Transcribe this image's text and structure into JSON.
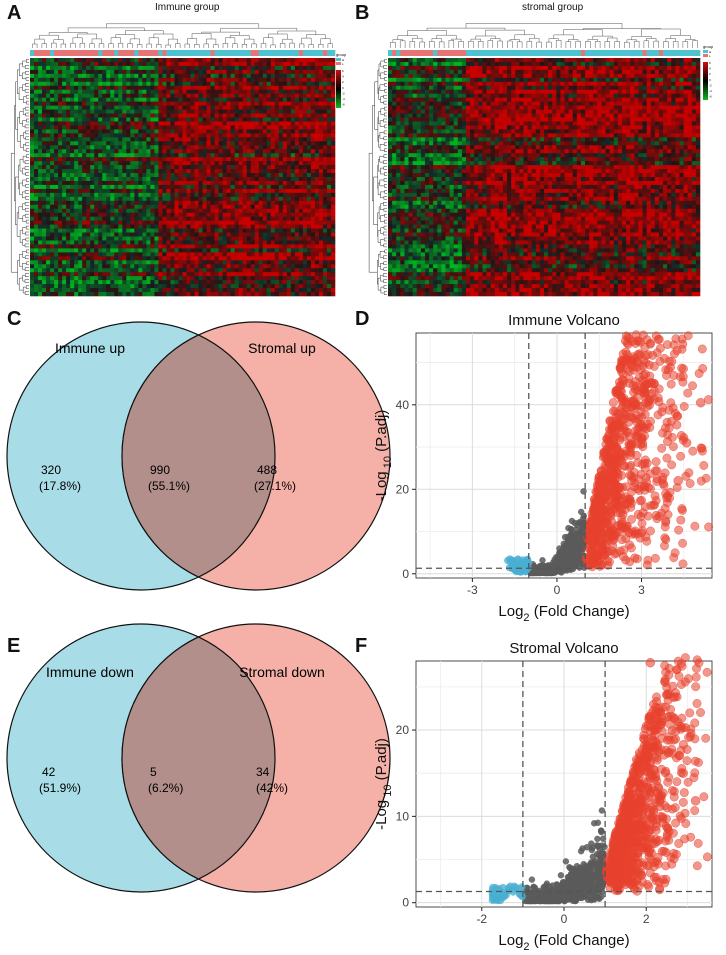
{
  "panels": {
    "a": {
      "letter": "A",
      "title": "Immune group",
      "legend_title": "group",
      "legend_groups": [
        "H",
        "L"
      ],
      "legend_ticks": [
        "6",
        "4",
        "2",
        "0",
        "-2",
        "-4",
        "-6"
      ]
    },
    "b": {
      "letter": "B",
      "title": "stromal group",
      "legend_title": "group",
      "legend_groups": [
        "H",
        "L"
      ],
      "legend_ticks": [
        "6",
        "4",
        "2",
        "0",
        "-2",
        "-4",
        "-6"
      ]
    },
    "c": {
      "letter": "C",
      "left_label": "Immune up",
      "right_label": "Stromal up",
      "left_count": "320",
      "left_pct": "(17.8%)",
      "mid_count": "990",
      "mid_pct": "(55.1%)",
      "right_count": "488",
      "right_pct": "(27.1%)"
    },
    "d": {
      "letter": "D"
    },
    "e": {
      "letter": "E",
      "left_label": "Immune down",
      "right_label": "Stromal down",
      "left_count": "42",
      "left_pct": "(51.9%)",
      "mid_count": "5",
      "mid_pct": "(6.2%)",
      "right_count": "34",
      "right_pct": "(42%)"
    },
    "f": {
      "letter": "F"
    }
  },
  "colors": {
    "venn_left": "#a8dde7",
    "venn_right": "#f5b1a8",
    "venn_overlap": "#b38f8c",
    "heat_group_h": "#e77474",
    "heat_group_l": "#4dc3d1",
    "volcano_up": "#e8412e",
    "volcano_down": "#4aafd2",
    "volcano_ns": "#5a5a5a"
  },
  "chart_data": [
    {
      "id": "immune_volcano",
      "type": "scatter",
      "title": "Immune Volcano",
      "xlabel_base": "Log",
      "xlabel_sub": "2",
      "xlabel_rest": " (Fold Change)",
      "ylabel_base": "-Log",
      "ylabel_sub": "10",
      "ylabel_rest": " (P.adj)",
      "xlim": [
        -5,
        5.5
      ],
      "ylim": [
        -1,
        57
      ],
      "x_ticks": [
        -3,
        0,
        3
      ],
      "y_ticks": [
        0,
        20,
        40
      ],
      "fc_cutoff": 1,
      "p_cutoff": 1.3,
      "outlier_points": [
        {
          "x": 5.1,
          "y": 40.5
        },
        {
          "x": 4.6,
          "y": 31
        },
        {
          "x": 4.3,
          "y": 22
        },
        {
          "x": 3.9,
          "y": 18
        }
      ],
      "seed": 7
    },
    {
      "id": "stromal_volcano",
      "type": "scatter",
      "title": "Stromal Volcano",
      "xlabel_base": "Log",
      "xlabel_sub": "2",
      "xlabel_rest": " (Fold Change)",
      "ylabel_base": "-Log",
      "ylabel_sub": "10",
      "ylabel_rest": " (P.adj)",
      "xlim": [
        -3.6,
        3.6
      ],
      "ylim": [
        -0.5,
        28
      ],
      "x_ticks": [
        -2,
        0,
        2
      ],
      "y_ticks": [
        0,
        10,
        20
      ],
      "fc_cutoff": 1,
      "p_cutoff": 1.3,
      "outlier_points": [
        {
          "x": 3.2,
          "y": 11.8
        },
        {
          "x": 2.9,
          "y": 15
        },
        {
          "x": 2.1,
          "y": 27.8
        }
      ],
      "seed": 13
    }
  ]
}
